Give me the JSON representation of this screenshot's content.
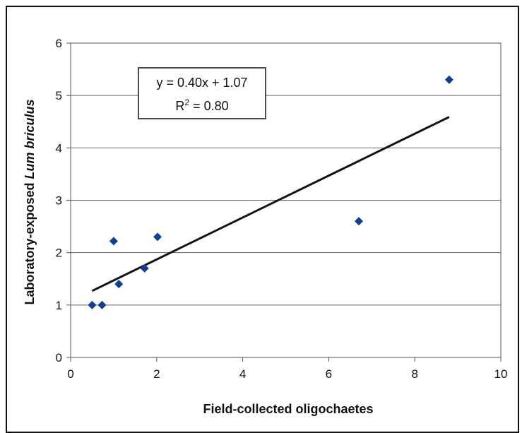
{
  "chart_data": {
    "type": "scatter",
    "xlabel": "Field-collected oligochaetes",
    "ylabel_prefix": "Laboratory-exposed ",
    "ylabel_italic": "Lum briculus",
    "xlim": [
      0,
      10
    ],
    "ylim": [
      0,
      6
    ],
    "x_ticks": [
      0,
      2,
      4,
      6,
      8,
      10
    ],
    "y_ticks": [
      0,
      1,
      2,
      3,
      4,
      5,
      6
    ],
    "grid": "horizontal",
    "marker_color": "#0b3f9a",
    "points": [
      {
        "x": 0.5,
        "y": 1.0
      },
      {
        "x": 0.73,
        "y": 1.0
      },
      {
        "x": 1.0,
        "y": 2.22
      },
      {
        "x": 1.12,
        "y": 1.4
      },
      {
        "x": 1.72,
        "y": 1.7
      },
      {
        "x": 2.02,
        "y": 2.3
      },
      {
        "x": 6.7,
        "y": 2.6
      },
      {
        "x": 8.8,
        "y": 5.3
      }
    ],
    "trendline": {
      "slope": 0.4,
      "intercept": 1.07,
      "x_range": [
        0.5,
        8.8
      ]
    },
    "equation_line1": "y = 0.40x + 1.07",
    "equation_r2_base": "R",
    "equation_r2_sup": "2",
    "equation_r2_rest": " = 0.80"
  }
}
